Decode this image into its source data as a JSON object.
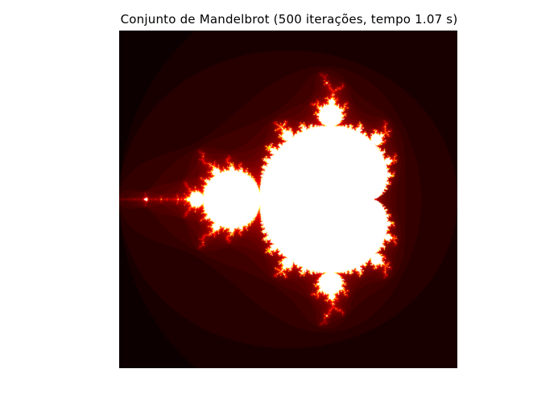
{
  "figure": {
    "title": "Conjunto de Mandelbrot (500 iterações, tempo 1.07 s)"
  },
  "image": {
    "subject": "mandelbrot-set",
    "colormap": "hot",
    "colors": {
      "background": "#000000",
      "set_fill": "#ffffff",
      "edge_glow": "#8b0000"
    },
    "iterations": 500,
    "complex_window": {
      "real": [
        -2.0,
        1.0
      ],
      "imag": [
        -1.5,
        1.5
      ]
    }
  }
}
